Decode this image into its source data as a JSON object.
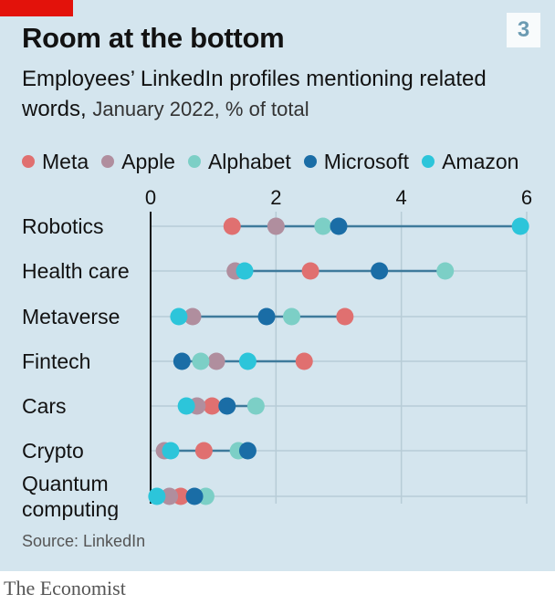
{
  "header": {
    "chart_number": "3",
    "title": "Room at the bottom",
    "subtitle_main": "Employees’ LinkedIn profiles mentioning related words,",
    "subtitle_detail": "January 2022, % of total"
  },
  "footer": {
    "source": "Source: LinkedIn",
    "brand": "The Economist"
  },
  "colors": {
    "panel": "#d4e5ee",
    "brand_red": "#e3120b",
    "connector": "#3e7a9b",
    "grid": "#b7ccd7",
    "Meta": "#e07070",
    "Apple": "#b08e9e",
    "Alphabet": "#7ccfc6",
    "Microsoft": "#1a6da6",
    "Amazon": "#2cc5da"
  },
  "chart_data": {
    "type": "scatter",
    "orientation": "horizontal dot plot",
    "title": "Room at the bottom",
    "subtitle": "Employees’ LinkedIn profiles mentioning related words, January 2022, % of total",
    "x_ticks": [
      0,
      2,
      4,
      6
    ],
    "xlim": [
      0,
      6
    ],
    "grid": true,
    "legend_position": "top",
    "categories": [
      [
        "Robotics"
      ],
      [
        "Health care"
      ],
      [
        "Metaverse"
      ],
      [
        "Fintech"
      ],
      [
        "Cars"
      ],
      [
        "Crypto"
      ],
      [
        "Quantum",
        "computing"
      ]
    ],
    "series": [
      {
        "name": "Meta",
        "values": [
          1.3,
          2.55,
          3.1,
          2.45,
          0.98,
          0.85,
          0.48
        ]
      },
      {
        "name": "Apple",
        "values": [
          2.0,
          1.35,
          0.67,
          1.05,
          0.74,
          0.22,
          0.3
        ]
      },
      {
        "name": "Alphabet",
        "values": [
          2.75,
          4.7,
          2.25,
          0.8,
          1.68,
          1.4,
          0.88
        ]
      },
      {
        "name": "Microsoft",
        "values": [
          3.0,
          3.65,
          1.85,
          0.5,
          1.22,
          1.55,
          0.7
        ]
      },
      {
        "name": "Amazon",
        "values": [
          5.9,
          1.5,
          0.45,
          1.55,
          0.57,
          0.32,
          0.1
        ]
      }
    ]
  }
}
